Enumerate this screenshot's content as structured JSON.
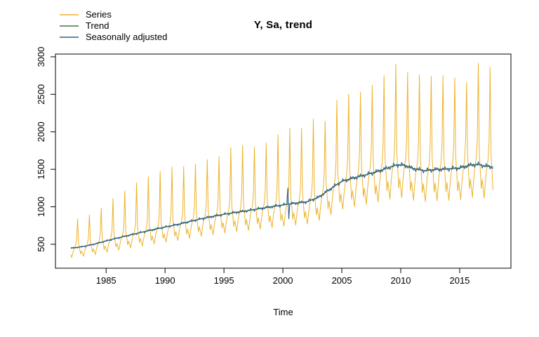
{
  "title": "Y, Sa, trend",
  "x_axis_label": "Time",
  "legend": [
    {
      "label": "Series",
      "color": "#edb32b"
    },
    {
      "label": "Trend",
      "color": "#3e7b3b"
    },
    {
      "label": "Seasonally adjusted",
      "color": "#2e6090"
    }
  ],
  "colors": {
    "background": "#ffffff",
    "axis": "#000000",
    "series": "#edb32b",
    "trend": "#3e7b3b",
    "seasonally_adjusted": "#2e6090"
  },
  "chart_data": {
    "type": "line",
    "title": "Y, Sa, trend",
    "xlabel": "Time",
    "ylabel": "",
    "grid": false,
    "legend_position": "topleft",
    "x_ticks": [
      1985,
      1990,
      1995,
      2000,
      2005,
      2010,
      2015
    ],
    "y_ticks": [
      500,
      1000,
      1500,
      2000,
      2500,
      3000
    ],
    "xlim": [
      1980.7,
      2019.35
    ],
    "ylim": [
      181,
      3037
    ],
    "x_start": 1982,
    "x_end": 2017.833,
    "frequency": "monthly",
    "n_points": 431,
    "series": [
      {
        "name": "Series",
        "color": "#edb32b",
        "built_from": "trend_points interpolated monthly x seasonal_factors_jan_to_dec, August replaced by august_peaks_1982_to_2017"
      },
      {
        "name": "Trend",
        "color": "#3e7b3b",
        "built_from": "linear interpolation of trend_points"
      },
      {
        "name": "Seasonally adjusted",
        "color": "#2e6090",
        "built_from": "trend plus small oscillation sa_noise, with sa_override_points"
      }
    ],
    "trend_points": [
      [
        1982,
        448
      ],
      [
        1983,
        468
      ],
      [
        1984,
        502
      ],
      [
        1985,
        545
      ],
      [
        1986,
        585
      ],
      [
        1987,
        622
      ],
      [
        1988,
        660
      ],
      [
        1989,
        696
      ],
      [
        1990,
        730
      ],
      [
        1991,
        762
      ],
      [
        1992,
        800
      ],
      [
        1993,
        838
      ],
      [
        1994,
        870
      ],
      [
        1995,
        900
      ],
      [
        1996,
        926
      ],
      [
        1997,
        948
      ],
      [
        1998,
        975
      ],
      [
        1999,
        1000
      ],
      [
        2000,
        1025
      ],
      [
        2001,
        1048
      ],
      [
        2002,
        1065
      ],
      [
        2003,
        1125
      ],
      [
        2004,
        1235
      ],
      [
        2005,
        1340
      ],
      [
        2006,
        1385
      ],
      [
        2007,
        1425
      ],
      [
        2008,
        1470
      ],
      [
        2009,
        1525
      ],
      [
        2009.8,
        1562
      ],
      [
        2010.4,
        1550
      ],
      [
        2011,
        1512
      ],
      [
        2012,
        1482
      ],
      [
        2013,
        1498
      ],
      [
        2014,
        1505
      ],
      [
        2015,
        1518
      ],
      [
        2015.9,
        1557
      ],
      [
        2016.6,
        1565
      ],
      [
        2017,
        1548
      ],
      [
        2017.85,
        1530
      ]
    ],
    "seasonal_factors_jan_to_dec": [
      0.8,
      0.72,
      0.84,
      0.94,
      1.0,
      1.06,
      1.22,
      1.92,
      1.1,
      0.96,
      0.8,
      0.88
    ],
    "august_peaks_1982_to_2017": [
      840,
      890,
      980,
      1110,
      1210,
      1320,
      1400,
      1470,
      1530,
      1540,
      1570,
      1630,
      1670,
      1790,
      1820,
      1800,
      1850,
      1960,
      2050,
      2050,
      2170,
      2140,
      2420,
      2500,
      2530,
      2620,
      2750,
      2900,
      2790,
      2760,
      2740,
      2750,
      2720,
      2660,
      2915,
      2860
    ],
    "sa_noise": {
      "a1": 0.014,
      "f1": 2.41,
      "a2": 0.01,
      "f2": 0.73
    },
    "sa_override_points": [
      {
        "month_index": 221,
        "year": 2000.417,
        "value": 1250
      },
      {
        "month_index": 222,
        "year": 2000.5,
        "value": 840
      }
    ]
  }
}
